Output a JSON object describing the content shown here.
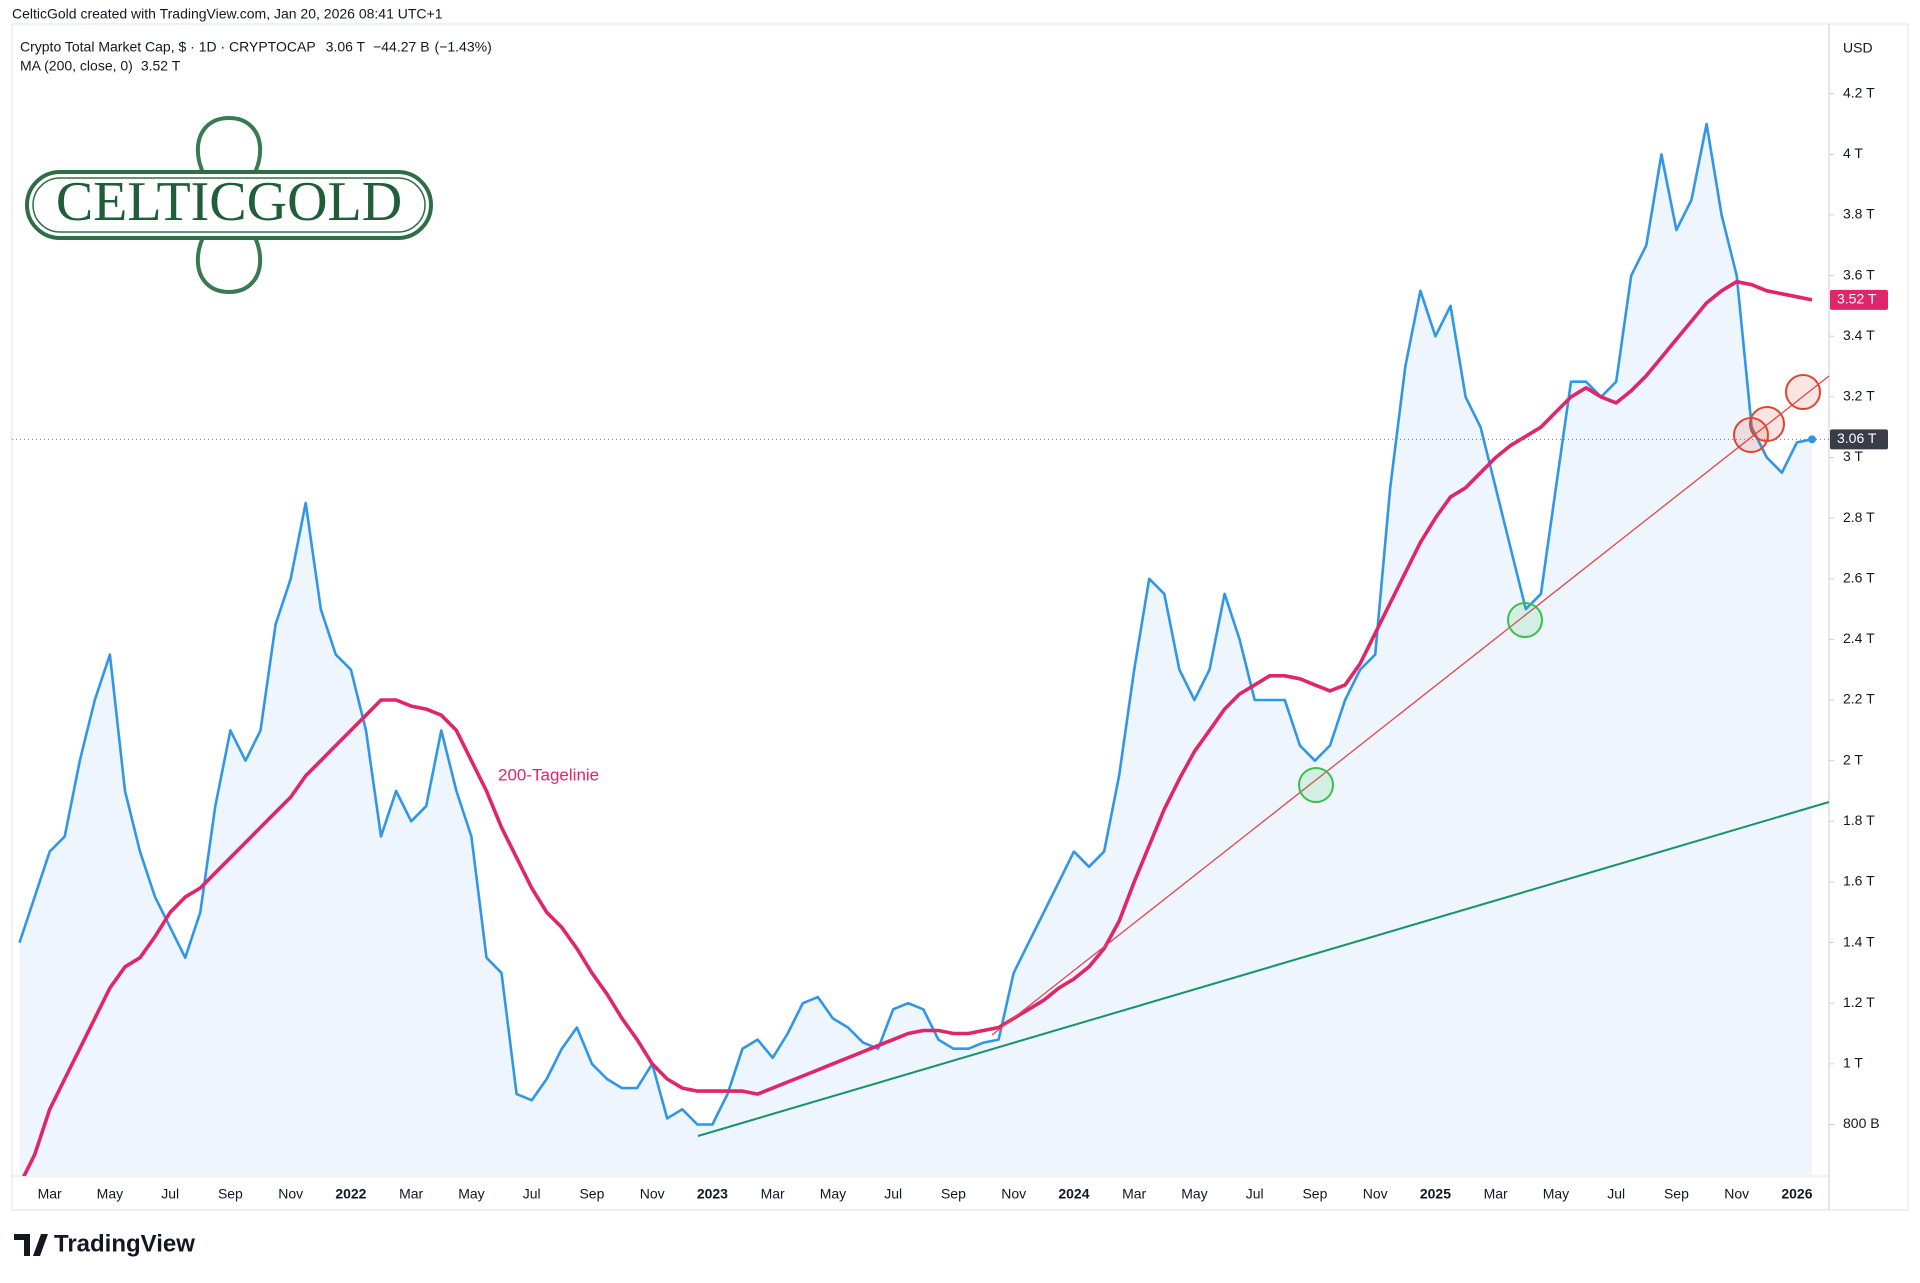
{
  "header": "CelticGold created with TradingView.com, Jan 20, 2026 08:41 UTC+1",
  "logo": "CELTICGOLD",
  "footer": "TradingView",
  "chart_data": {
    "type": "line",
    "currency": "USD",
    "annotation": "200-Tagelinie",
    "change": "−44.27 B",
    "change_pct": "(−1.43%)",
    "categories": [
      null,
      null,
      "Mar",
      null,
      null,
      null,
      "May",
      null,
      null,
      null,
      "Jul",
      null,
      null,
      null,
      "Sep",
      null,
      null,
      null,
      "Nov",
      null,
      null,
      null,
      "2022",
      null,
      null,
      null,
      "Mar",
      null,
      null,
      null,
      "May",
      null,
      null,
      null,
      "Jul",
      null,
      null,
      null,
      "Sep",
      null,
      null,
      null,
      "Nov",
      null,
      null,
      null,
      "2023",
      null,
      null,
      null,
      "Mar",
      null,
      null,
      null,
      "May",
      null,
      null,
      null,
      "Jul",
      null,
      null,
      null,
      "Sep",
      null,
      null,
      null,
      "Nov",
      null,
      null,
      null,
      "2024",
      null,
      null,
      null,
      "Mar",
      null,
      null,
      null,
      "May",
      null,
      null,
      null,
      "Jul",
      null,
      null,
      null,
      "Sep",
      null,
      null,
      null,
      "Nov",
      null,
      null,
      null,
      "2025",
      null,
      null,
      null,
      "Mar",
      null,
      null,
      null,
      "May",
      null,
      null,
      null,
      "Jul",
      null,
      null,
      null,
      "Sep",
      null,
      null,
      null,
      "Nov",
      null,
      null,
      null,
      "2026",
      null
    ],
    "series": [
      {
        "name": "Crypto Total Market Cap, $ · 1D · CRYPTOCAP",
        "color": "#2f96e8",
        "area_color": "#eef5fc",
        "last_label": "3.06 T",
        "values": [
          1.4,
          1.55,
          1.7,
          1.75,
          2.0,
          2.2,
          2.35,
          1.9,
          1.7,
          1.55,
          1.45,
          1.35,
          1.5,
          1.85,
          2.1,
          2.0,
          2.1,
          2.45,
          2.6,
          2.85,
          2.5,
          2.35,
          2.3,
          2.1,
          1.75,
          1.9,
          1.8,
          1.85,
          2.1,
          1.9,
          1.75,
          1.35,
          1.3,
          0.9,
          0.88,
          0.95,
          1.05,
          1.12,
          1.0,
          0.95,
          0.92,
          0.92,
          1.0,
          0.82,
          0.85,
          0.8,
          0.8,
          0.9,
          1.05,
          1.08,
          1.02,
          1.1,
          1.2,
          1.22,
          1.15,
          1.12,
          1.07,
          1.05,
          1.18,
          1.2,
          1.18,
          1.08,
          1.05,
          1.05,
          1.07,
          1.08,
          1.3,
          1.4,
          1.5,
          1.6,
          1.7,
          1.65,
          1.7,
          1.95,
          2.3,
          2.6,
          2.55,
          2.3,
          2.2,
          2.3,
          2.55,
          2.4,
          2.2,
          2.2,
          2.2,
          2.05,
          2.0,
          2.05,
          2.2,
          2.3,
          2.35,
          2.9,
          3.3,
          3.55,
          3.4,
          3.5,
          3.2,
          3.1,
          2.9,
          2.7,
          2.5,
          2.55,
          2.9,
          3.25,
          3.25,
          3.2,
          3.25,
          3.6,
          3.7,
          4.0,
          3.75,
          3.85,
          4.1,
          3.8,
          3.6,
          3.1,
          3.0,
          2.95,
          3.05,
          3.06
        ]
      },
      {
        "name": "MA (200, close, 0)",
        "color": "#e0266b",
        "last_label": "3.52 T",
        "values": [
          0.6,
          0.7,
          0.85,
          0.95,
          1.05,
          1.15,
          1.25,
          1.32,
          1.35,
          1.42,
          1.5,
          1.55,
          1.58,
          1.63,
          1.68,
          1.73,
          1.78,
          1.83,
          1.88,
          1.95,
          2.0,
          2.05,
          2.1,
          2.15,
          2.2,
          2.2,
          2.18,
          2.17,
          2.15,
          2.1,
          2.0,
          1.9,
          1.78,
          1.68,
          1.58,
          1.5,
          1.45,
          1.38,
          1.3,
          1.23,
          1.15,
          1.08,
          1.0,
          0.95,
          0.92,
          0.91,
          0.91,
          0.91,
          0.91,
          0.9,
          0.92,
          0.94,
          0.96,
          0.98,
          1.0,
          1.02,
          1.04,
          1.06,
          1.08,
          1.1,
          1.11,
          1.11,
          1.1,
          1.1,
          1.11,
          1.12,
          1.15,
          1.18,
          1.21,
          1.25,
          1.28,
          1.32,
          1.38,
          1.47,
          1.6,
          1.72,
          1.84,
          1.94,
          2.03,
          2.1,
          2.17,
          2.22,
          2.25,
          2.28,
          2.28,
          2.27,
          2.25,
          2.23,
          2.25,
          2.32,
          2.42,
          2.52,
          2.62,
          2.72,
          2.8,
          2.87,
          2.9,
          2.95,
          3.0,
          3.04,
          3.07,
          3.1,
          3.15,
          3.2,
          3.23,
          3.2,
          3.18,
          3.22,
          3.27,
          3.33,
          3.39,
          3.45,
          3.51,
          3.55,
          3.58,
          3.57,
          3.55,
          3.54,
          3.53,
          3.52
        ]
      }
    ],
    "ylim": [
      0.63,
      4.43
    ],
    "yticks": [
      {
        "value": 0.8,
        "label": "800 B"
      },
      {
        "value": 1,
        "label": "1 T"
      },
      {
        "value": 1.2,
        "label": "1.2 T"
      },
      {
        "value": 1.4,
        "label": "1.4 T"
      },
      {
        "value": 1.6,
        "label": "1.6 T"
      },
      {
        "value": 1.8,
        "label": "1.8 T"
      },
      {
        "value": 2,
        "label": "2 T"
      },
      {
        "value": 2.2,
        "label": "2.2 T"
      },
      {
        "value": 2.4,
        "label": "2.4 T"
      },
      {
        "value": 2.6,
        "label": "2.6 T"
      },
      {
        "value": 2.8,
        "label": "2.8 T"
      },
      {
        "value": 3,
        "label": "3 T"
      },
      {
        "value": 3.2,
        "label": "3.2 T"
      },
      {
        "value": 3.4,
        "label": "3.4 T"
      },
      {
        "value": 3.6,
        "label": "3.6 T"
      },
      {
        "value": 3.8,
        "label": "3.8 T"
      },
      {
        "value": 4,
        "label": "4 T"
      },
      {
        "value": 4.2,
        "label": "4.2 T"
      }
    ],
    "grid": false
  }
}
